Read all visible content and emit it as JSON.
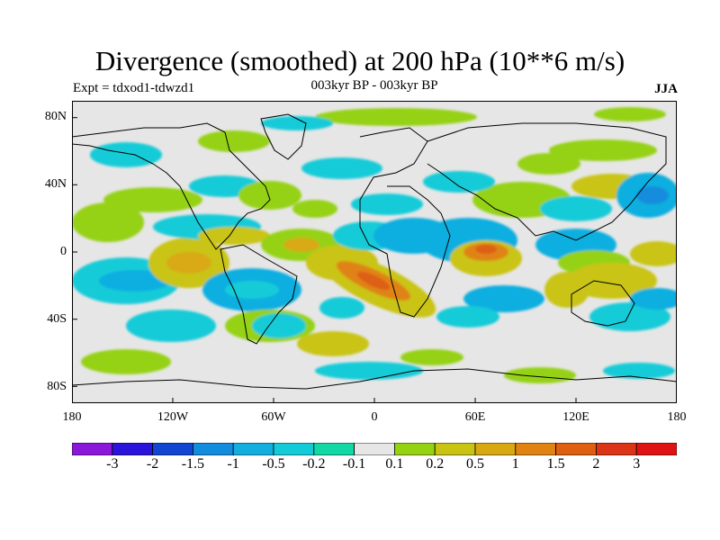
{
  "title": "Divergence (smoothed) at 200 hPa (10**6 m/s)",
  "subtitle_left": "Expt = tdxod1-tdwzd1",
  "subtitle_center": "003kyr BP - 003kyr BP",
  "subtitle_right": "JJA",
  "y_axis_labels": [
    "80N",
    "40N",
    "0",
    "40S",
    "80S"
  ],
  "x_axis_labels": [
    "180",
    "120W",
    "60W",
    "0",
    "60E",
    "120E",
    "180"
  ],
  "colorbar": {
    "labels": [
      "-3",
      "-2",
      "-1.5",
      "-1",
      "-0.5",
      "-0.2",
      "-0.1",
      "0.1",
      "0.2",
      "0.5",
      "1",
      "1.5",
      "2",
      "3"
    ],
    "colors": [
      "#8B17DA",
      "#2A13DB",
      "#1046D1",
      "#128CDC",
      "#11AFE0",
      "#13CBD8",
      "#12D8A4",
      "#E6E6E6",
      "#95D212",
      "#C9C412",
      "#D9A912",
      "#E08312",
      "#DE5E12",
      "#DC3416",
      "#E01314"
    ]
  },
  "map": {
    "projection": "cylindrical-equidistant",
    "background_color": "#E6E6E6",
    "coastline_color": "#000000"
  }
}
